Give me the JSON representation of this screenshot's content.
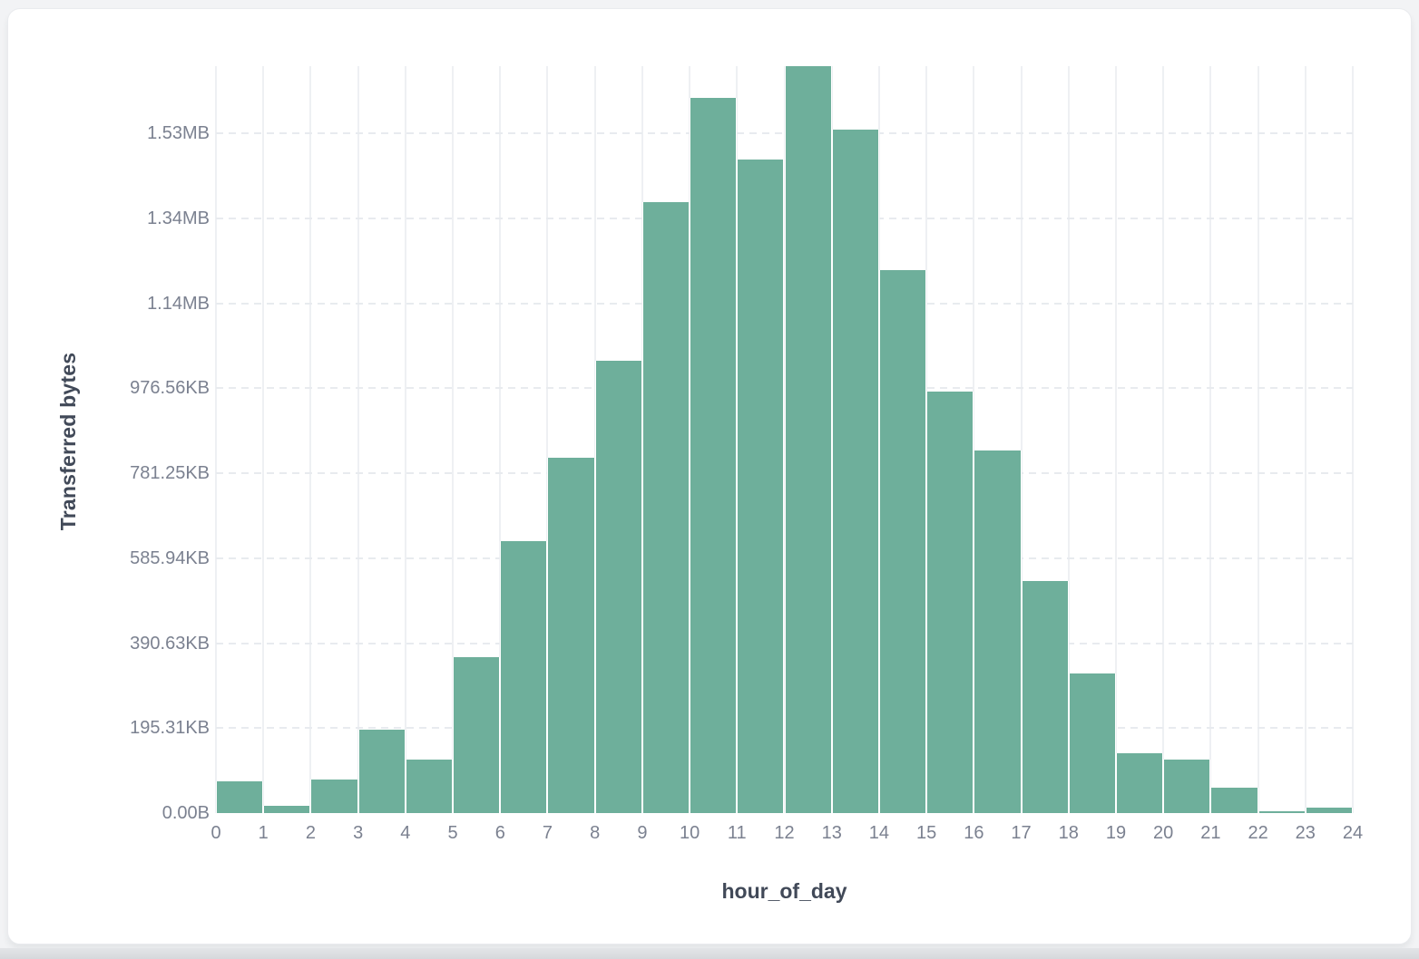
{
  "page": {
    "background": "#f2f3f5",
    "card_background": "#ffffff",
    "bottom_strip_color": "#d8dadd"
  },
  "colors": {
    "bar_fill": "#6EAF9B",
    "bar_stroke": "#ffffff",
    "vertical_gridline": "#eef0f3",
    "horizontal_gridline": "#e8ebef",
    "tick_label": "#7b8190",
    "axis_title": "#414958"
  },
  "chart_data": {
    "type": "bar",
    "subtype": "histogram",
    "title": "",
    "xlabel": "hour_of_day",
    "ylabel": "Transferred bytes",
    "legend_position": "none",
    "grid": {
      "vertical": "solid",
      "horizontal": "dashed"
    },
    "x_tick_labels": [
      "0",
      "1",
      "2",
      "3",
      "4",
      "5",
      "6",
      "7",
      "8",
      "9",
      "10",
      "11",
      "12",
      "13",
      "14",
      "15",
      "16",
      "17",
      "18",
      "19",
      "20",
      "21",
      "22",
      "23",
      "24"
    ],
    "bin_width_hours": 1,
    "values_bytes": [
      74500,
      17000,
      79000,
      196000,
      126000,
      367000,
      640000,
      836000,
      1065000,
      1438000,
      1683000,
      1538000,
      1758000,
      1608000,
      1278000,
      992000,
      853000,
      546000,
      328000,
      141000,
      126000,
      60000,
      4000,
      13000
    ],
    "xlim": [
      0,
      24
    ],
    "ylim": [
      0,
      1758000
    ],
    "y_ticks": [
      {
        "value": 0,
        "label": "0.00B"
      },
      {
        "value": 200000,
        "label": "195.31KB"
      },
      {
        "value": 400000,
        "label": "390.63KB"
      },
      {
        "value": 600000,
        "label": "585.94KB"
      },
      {
        "value": 800000,
        "label": "781.25KB"
      },
      {
        "value": 1000000,
        "label": "976.56KB"
      },
      {
        "value": 1200000,
        "label": "1.14MB"
      },
      {
        "value": 1400000,
        "label": "1.34MB"
      },
      {
        "value": 1600000,
        "label": "1.53MB"
      }
    ]
  }
}
